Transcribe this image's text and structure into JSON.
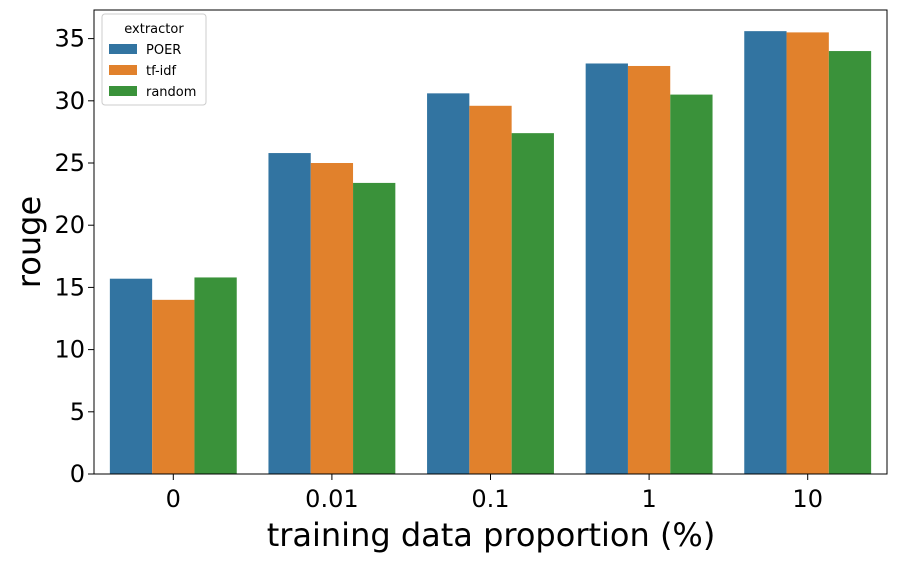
{
  "chart_data": {
    "type": "bar",
    "title": "",
    "xlabel": "training data proportion (%)",
    "ylabel": "rouge",
    "categories": [
      "0",
      "0.01",
      "0.1",
      "1",
      "10"
    ],
    "ylim": [
      0,
      37.3
    ],
    "yticks": [
      "0",
      "5",
      "10",
      "15",
      "20",
      "25",
      "30",
      "35"
    ],
    "grid": false,
    "legend": {
      "title": "extractor",
      "placement": "top-left"
    },
    "series": [
      {
        "name": "POER",
        "color": "#3274a1",
        "values": [
          15.7,
          25.8,
          30.6,
          33.0,
          35.6
        ]
      },
      {
        "name": "tf-idf",
        "color": "#e1812c",
        "values": [
          14.0,
          25.0,
          29.6,
          32.8,
          35.5
        ]
      },
      {
        "name": "random",
        "color": "#3a923a",
        "values": [
          15.8,
          23.4,
          27.4,
          30.5,
          34.0
        ]
      }
    ]
  }
}
